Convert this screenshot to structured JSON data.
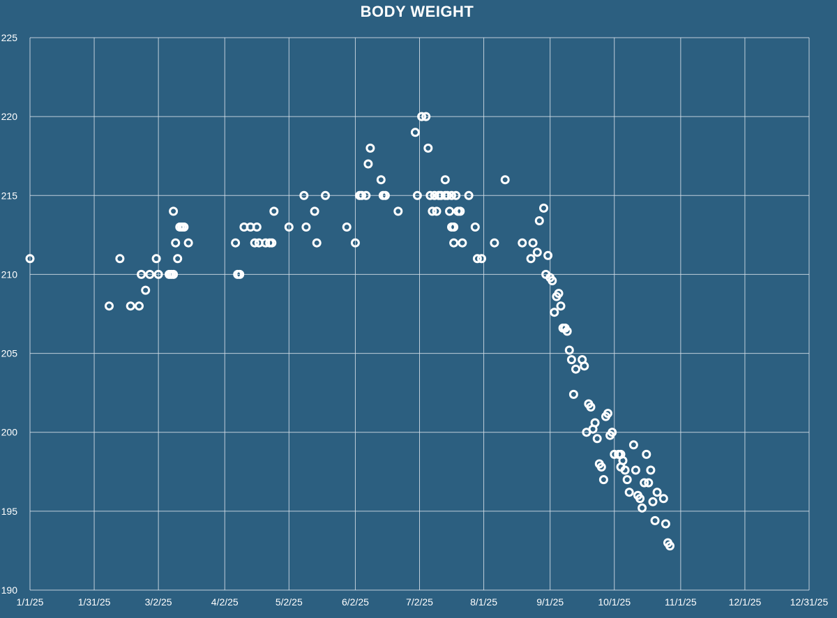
{
  "chart_data": {
    "type": "scatter",
    "title": "BODY WEIGHT",
    "xlabel": "",
    "ylabel": "",
    "x_ticks": [
      "1/1/25",
      "1/31/25",
      "3/2/25",
      "4/2/25",
      "5/2/25",
      "6/2/25",
      "7/2/25",
      "8/1/25",
      "9/1/25",
      "10/1/25",
      "11/1/25",
      "12/1/25",
      "12/31/25"
    ],
    "y_ticks": [
      190,
      195,
      200,
      205,
      210,
      215,
      220,
      225
    ],
    "ylim": [
      190,
      225
    ],
    "xlim": [
      "2025-01-01",
      "2025-12-31"
    ],
    "grid": true,
    "legend": "none",
    "colors": {
      "background": "#2c5f80",
      "marker": "#ffffff",
      "grid": "#d9e2ea"
    },
    "series": [
      {
        "points": [
          [
            "2025-01-01",
            211
          ],
          [
            "2025-02-07",
            208
          ],
          [
            "2025-02-12",
            211
          ],
          [
            "2025-02-17",
            208
          ],
          [
            "2025-02-21",
            208
          ],
          [
            "2025-02-22",
            210
          ],
          [
            "2025-02-24",
            209
          ],
          [
            "2025-02-26",
            210
          ],
          [
            "2025-03-01",
            211
          ],
          [
            "2025-03-02",
            210
          ],
          [
            "2025-03-07",
            210
          ],
          [
            "2025-03-08",
            210
          ],
          [
            "2025-03-09",
            210
          ],
          [
            "2025-03-09",
            214
          ],
          [
            "2025-03-10",
            212
          ],
          [
            "2025-03-11",
            211
          ],
          [
            "2025-03-12",
            213
          ],
          [
            "2025-03-13",
            213
          ],
          [
            "2025-03-14",
            213
          ],
          [
            "2025-03-16",
            212
          ],
          [
            "2025-04-07",
            212
          ],
          [
            "2025-04-08",
            210
          ],
          [
            "2025-04-09",
            210
          ],
          [
            "2025-04-11",
            213
          ],
          [
            "2025-04-14",
            213
          ],
          [
            "2025-04-16",
            212
          ],
          [
            "2025-04-17",
            213
          ],
          [
            "2025-04-18",
            212
          ],
          [
            "2025-04-21",
            212
          ],
          [
            "2025-04-23",
            212
          ],
          [
            "2025-04-24",
            212
          ],
          [
            "2025-04-25",
            214
          ],
          [
            "2025-05-02",
            213
          ],
          [
            "2025-05-09",
            215
          ],
          [
            "2025-05-10",
            213
          ],
          [
            "2025-05-14",
            214
          ],
          [
            "2025-05-15",
            212
          ],
          [
            "2025-05-19",
            215
          ],
          [
            "2025-05-29",
            213
          ],
          [
            "2025-06-02",
            212
          ],
          [
            "2025-06-04",
            215
          ],
          [
            "2025-06-05",
            215
          ],
          [
            "2025-06-07",
            215
          ],
          [
            "2025-06-08",
            217
          ],
          [
            "2025-06-09",
            218
          ],
          [
            "2025-06-14",
            216
          ],
          [
            "2025-06-15",
            215
          ],
          [
            "2025-06-16",
            215
          ],
          [
            "2025-06-22",
            214
          ],
          [
            "2025-06-30",
            219
          ],
          [
            "2025-07-01",
            215
          ],
          [
            "2025-07-03",
            220
          ],
          [
            "2025-07-05",
            220
          ],
          [
            "2025-07-06",
            218
          ],
          [
            "2025-07-07",
            215
          ],
          [
            "2025-07-08",
            214
          ],
          [
            "2025-07-09",
            215
          ],
          [
            "2025-07-10",
            214
          ],
          [
            "2025-07-11",
            215
          ],
          [
            "2025-07-12",
            215
          ],
          [
            "2025-07-14",
            216
          ],
          [
            "2025-07-14",
            215
          ],
          [
            "2025-07-15",
            215
          ],
          [
            "2025-07-16",
            214
          ],
          [
            "2025-07-17",
            215
          ],
          [
            "2025-07-17",
            213
          ],
          [
            "2025-07-18",
            212
          ],
          [
            "2025-07-18",
            213
          ],
          [
            "2025-07-19",
            215
          ],
          [
            "2025-07-20",
            214
          ],
          [
            "2025-07-21",
            214
          ],
          [
            "2025-07-22",
            212
          ],
          [
            "2025-07-25",
            215
          ],
          [
            "2025-07-28",
            213
          ],
          [
            "2025-07-29",
            211
          ],
          [
            "2025-07-31",
            211
          ],
          [
            "2025-08-06",
            212
          ],
          [
            "2025-08-11",
            216
          ],
          [
            "2025-08-19",
            212
          ],
          [
            "2025-08-23",
            211
          ],
          [
            "2025-08-24",
            212
          ],
          [
            "2025-08-26",
            211.4
          ],
          [
            "2025-08-27",
            213.4
          ],
          [
            "2025-08-29",
            214.2
          ],
          [
            "2025-08-30",
            210
          ],
          [
            "2025-08-31",
            211.2
          ],
          [
            "2025-09-01",
            209.8
          ],
          [
            "2025-09-02",
            209.6
          ],
          [
            "2025-09-03",
            207.6
          ],
          [
            "2025-09-04",
            208.6
          ],
          [
            "2025-09-05",
            208.8
          ],
          [
            "2025-09-06",
            208
          ],
          [
            "2025-09-07",
            206.6
          ],
          [
            "2025-09-08",
            206.6
          ],
          [
            "2025-09-09",
            206.4
          ],
          [
            "2025-09-10",
            205.2
          ],
          [
            "2025-09-11",
            204.6
          ],
          [
            "2025-09-12",
            202.4
          ],
          [
            "2025-09-13",
            204
          ],
          [
            "2025-09-16",
            204.6
          ],
          [
            "2025-09-17",
            204.2
          ],
          [
            "2025-09-18",
            200
          ],
          [
            "2025-09-19",
            201.8
          ],
          [
            "2025-09-20",
            201.6
          ],
          [
            "2025-09-21",
            200.2
          ],
          [
            "2025-09-22",
            200.6
          ],
          [
            "2025-09-23",
            199.6
          ],
          [
            "2025-09-24",
            198
          ],
          [
            "2025-09-25",
            197.8
          ],
          [
            "2025-09-26",
            197
          ],
          [
            "2025-09-27",
            201
          ],
          [
            "2025-09-28",
            201.2
          ],
          [
            "2025-09-29",
            199.8
          ],
          [
            "2025-09-30",
            200
          ],
          [
            "2025-10-01",
            198.6
          ],
          [
            "2025-10-03",
            198.6
          ],
          [
            "2025-10-04",
            198.6
          ],
          [
            "2025-10-04",
            197.8
          ],
          [
            "2025-10-05",
            198.2
          ],
          [
            "2025-10-06",
            197.6
          ],
          [
            "2025-10-07",
            197
          ],
          [
            "2025-10-08",
            196.2
          ],
          [
            "2025-10-10",
            199.2
          ],
          [
            "2025-10-11",
            197.6
          ],
          [
            "2025-10-12",
            196
          ],
          [
            "2025-10-13",
            195.8
          ],
          [
            "2025-10-14",
            195.2
          ],
          [
            "2025-10-15",
            196.8
          ],
          [
            "2025-10-16",
            198.6
          ],
          [
            "2025-10-17",
            196.8
          ],
          [
            "2025-10-18",
            197.6
          ],
          [
            "2025-10-19",
            195.6
          ],
          [
            "2025-10-20",
            194.4
          ],
          [
            "2025-10-21",
            196.2
          ],
          [
            "2025-10-24",
            195.8
          ],
          [
            "2025-10-25",
            194.2
          ],
          [
            "2025-10-26",
            193
          ],
          [
            "2025-10-27",
            192.8
          ]
        ]
      }
    ]
  }
}
